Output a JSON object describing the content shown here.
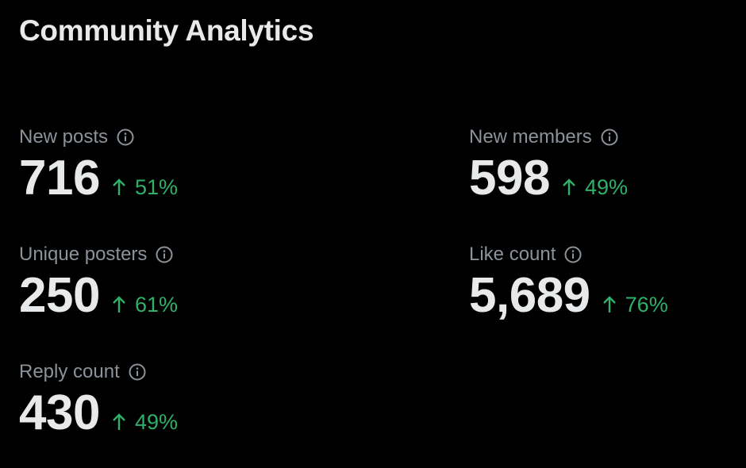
{
  "page": {
    "title": "Community Analytics"
  },
  "colors": {
    "background": "#000000",
    "label": "#8b9299",
    "value": "#e7e9ea",
    "positive_change": "#2fb068"
  },
  "icons": {
    "info": "info-circle-icon",
    "trend_up": "arrow-up-icon"
  },
  "metrics": {
    "new_posts": {
      "label": "New posts",
      "value": "716",
      "change": "51%"
    },
    "unique_posters": {
      "label": "Unique posters",
      "value": "250",
      "change": "61%"
    },
    "reply_count": {
      "label": "Reply count",
      "value": "430",
      "change": "49%"
    },
    "new_members": {
      "label": "New members",
      "value": "598",
      "change": "49%"
    },
    "like_count": {
      "label": "Like count",
      "value": "5,689",
      "change": "76%"
    }
  }
}
